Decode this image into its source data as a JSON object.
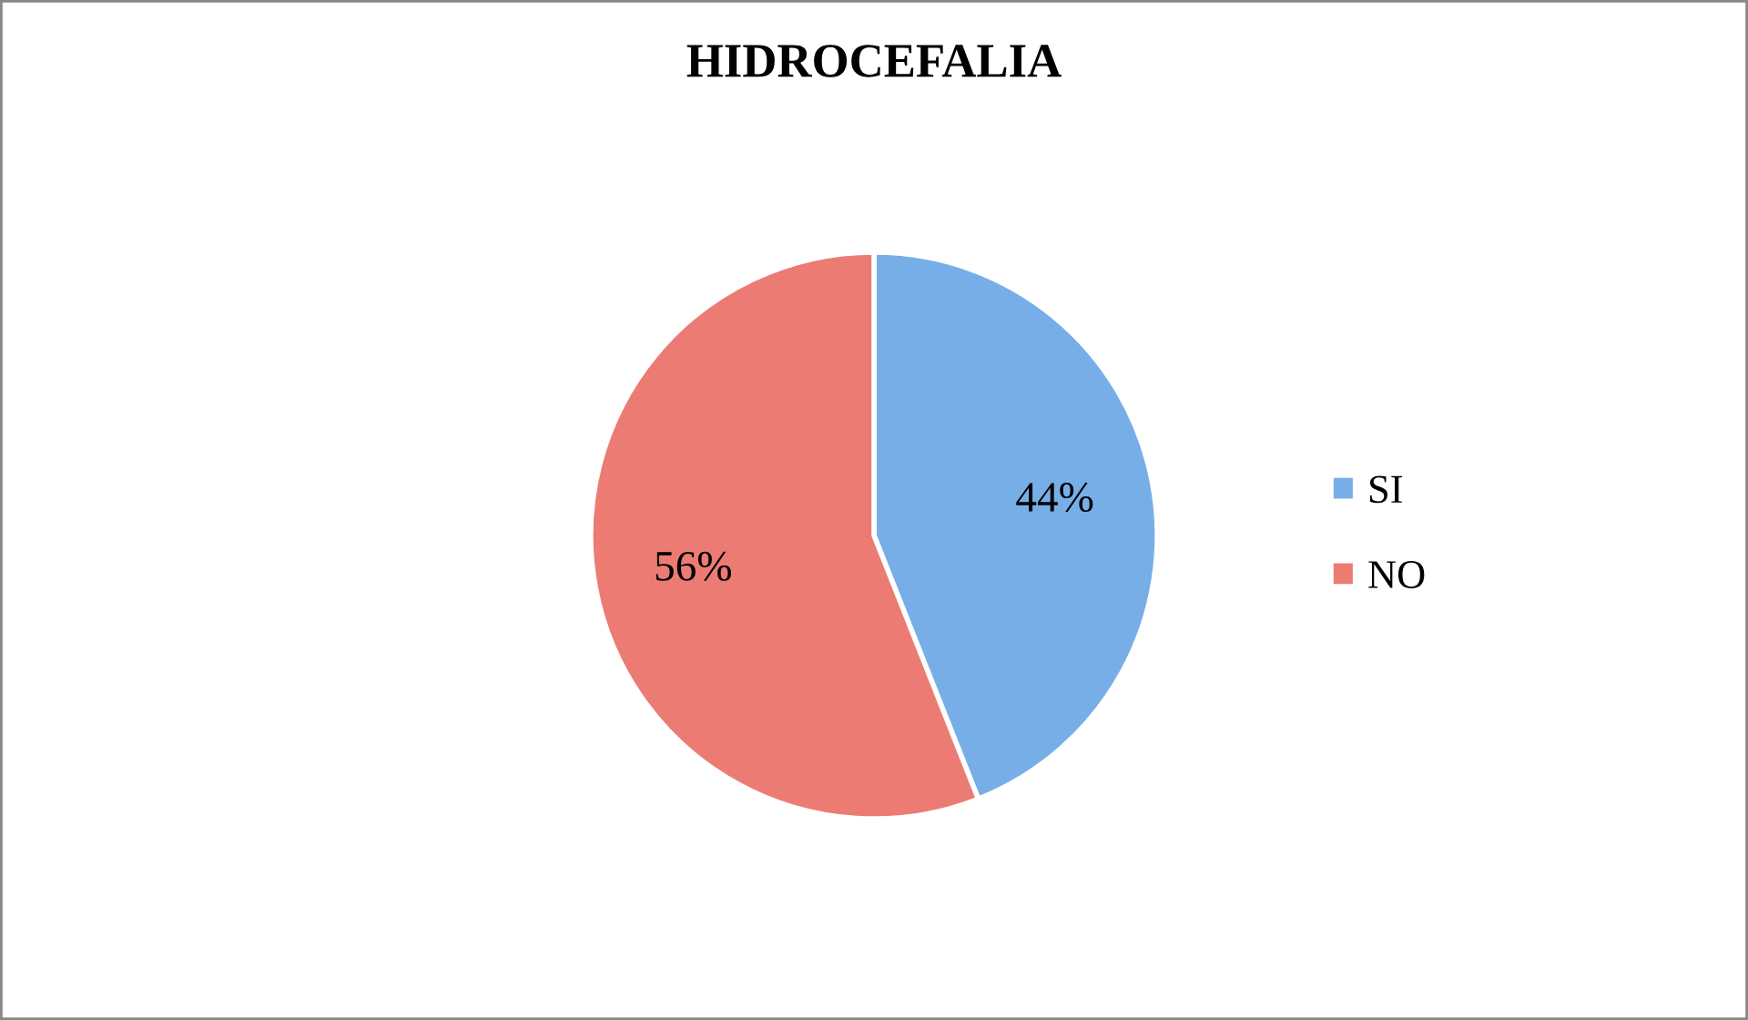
{
  "chart_data": {
    "type": "pie",
    "title": "HIDROCEFALIA",
    "categories": [
      "SI",
      "NO"
    ],
    "values": [
      44,
      56
    ],
    "value_labels": [
      "44%",
      "56%"
    ],
    "colors": [
      "#78aee8",
      "#ec7b73"
    ],
    "legend": "right"
  }
}
